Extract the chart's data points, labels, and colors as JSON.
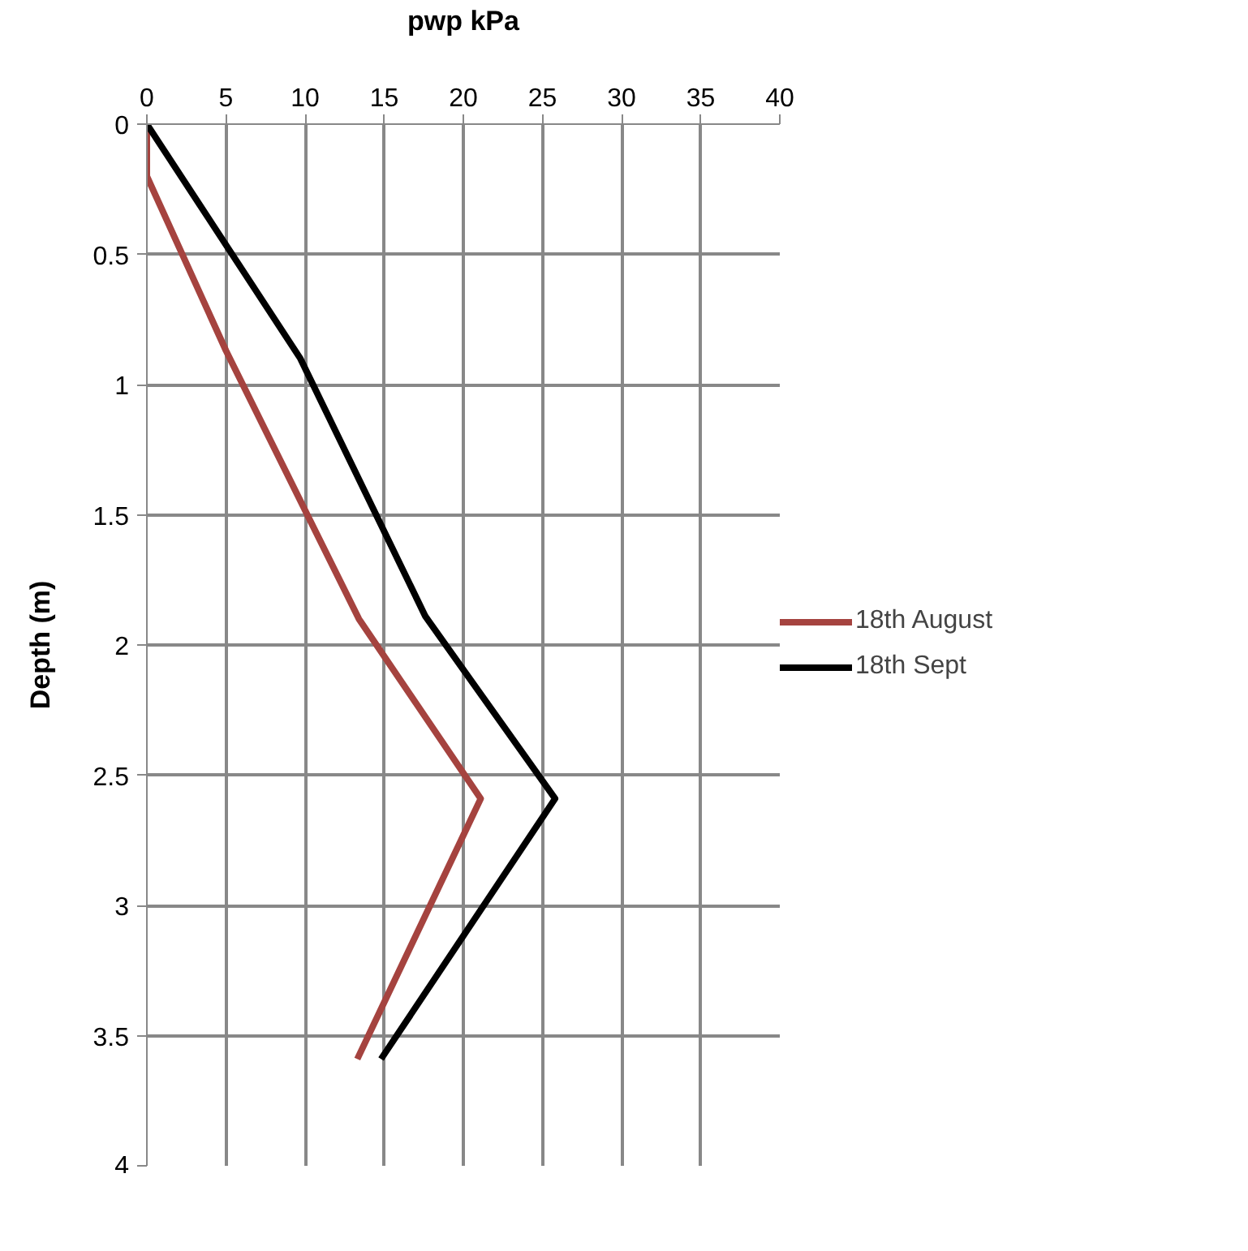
{
  "chart_data": {
    "type": "line",
    "xlabel": "pwp kPa",
    "ylabel": "Depth (m)",
    "xlim": [
      0,
      40
    ],
    "xticks": [
      0,
      5,
      10,
      15,
      20,
      25,
      30,
      35,
      40
    ],
    "ylim": [
      4,
      0
    ],
    "yticks": [
      0,
      0.5,
      1,
      1.5,
      2,
      2.5,
      3,
      3.5,
      4
    ],
    "grid": true,
    "legend": "right",
    "marker": "none",
    "line_style": "solid",
    "series": [
      {
        "name": "18th August",
        "color": "#a5433f",
        "x": [
          0,
          0,
          5.0,
          13.4,
          21.1,
          13.3
        ],
        "values": [
          0,
          0.2,
          0.87,
          1.9,
          2.59,
          3.59
        ]
      },
      {
        "name": "18th Sept",
        "color": "#000000",
        "x": [
          0,
          9.7,
          17.6,
          25.8,
          14.8
        ],
        "values": [
          0,
          0.9,
          1.89,
          2.59,
          3.59
        ]
      }
    ]
  }
}
